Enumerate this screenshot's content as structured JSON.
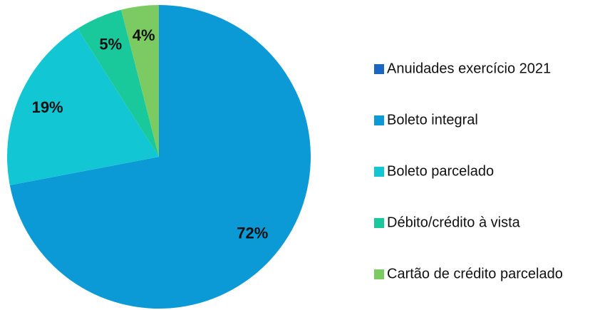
{
  "chart_data": {
    "type": "pie",
    "categories": [
      "Anuidades exercício 2021",
      "Boleto integral",
      "Boleto parcelado",
      "Débito/crédito à vista",
      "Cartão de crédito parcelado"
    ],
    "values": [
      null,
      72,
      19,
      5,
      4
    ],
    "value_labels": [
      null,
      "72%",
      "19%",
      "5%",
      "4%"
    ],
    "colors": [
      "#1a66c2",
      "#0b9ad6",
      "#12c6d3",
      "#19c99b",
      "#7bcb62"
    ],
    "legend": "right"
  }
}
